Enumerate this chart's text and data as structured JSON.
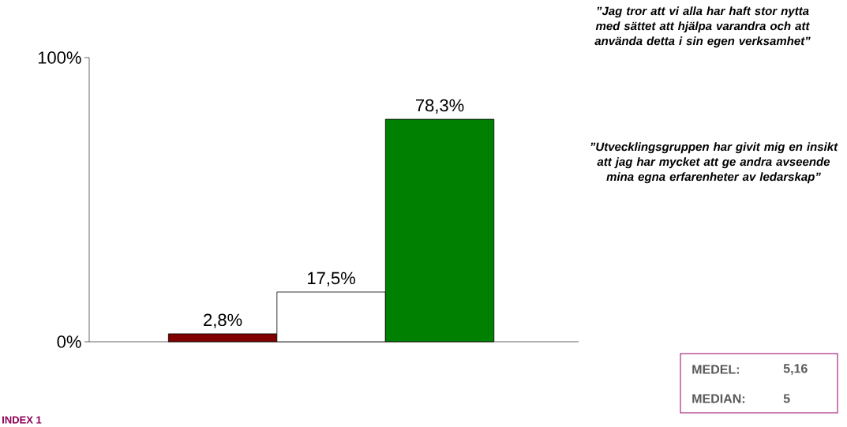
{
  "chart_data": {
    "type": "bar",
    "categories": [
      null,
      null,
      null
    ],
    "values": [
      2.8,
      17.5,
      78.3
    ],
    "colors": [
      "#800000",
      "#ffffff",
      "#008000"
    ],
    "value_labels": [
      "2,8%",
      "17,5%",
      "78,3%"
    ],
    "ylim": [
      0,
      100
    ],
    "yticks": [
      {
        "value": 0,
        "label": "0%"
      },
      {
        "value": 100,
        "label": "100%"
      }
    ],
    "annotations": [
      "”Jag tror att vi alla har haft stor nytta med sättet att hjälpa varandra och att använda detta i sin egen verksamhet”",
      "”Utvecklingsgruppen har givit mig en insikt att jag har mycket att ge andra avseende mina egna erfarenheter av ledarskap”",
      "MEDEL:",
      "5,16",
      "MEDIAN:",
      "5",
      "INDEX 1"
    ]
  }
}
